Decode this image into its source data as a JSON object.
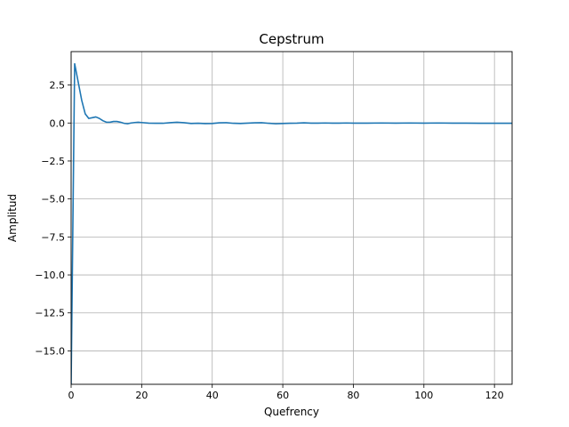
{
  "chart_data": {
    "type": "line",
    "title": "Cepstrum",
    "xlabel": "Quefrency",
    "ylabel": "Amplitud",
    "xlim": [
      0,
      125
    ],
    "ylim": [
      -17.2,
      4.7
    ],
    "xticks": [
      0,
      20,
      40,
      60,
      80,
      100,
      120
    ],
    "yticks": [
      2.5,
      0.0,
      -2.5,
      -5.0,
      -7.5,
      -10.0,
      -12.5,
      -15.0
    ],
    "ytick_labels": [
      "2.5",
      "0.0",
      "−2.5",
      "−5.0",
      "−7.5",
      "−10.0",
      "−12.5",
      "−15.0"
    ],
    "grid": true,
    "series": [
      {
        "color": "#1f77b4",
        "x": [
          0,
          1,
          2,
          3,
          4,
          5,
          6,
          7,
          8,
          9,
          10,
          11,
          12,
          13,
          14,
          15,
          16,
          17,
          18,
          19,
          20,
          22,
          24,
          26,
          28,
          30,
          32,
          34,
          36,
          38,
          40,
          42,
          44,
          46,
          48,
          50,
          52,
          54,
          56,
          58,
          60,
          62,
          64,
          66,
          68,
          70,
          72,
          74,
          76,
          78,
          80,
          84,
          88,
          92,
          96,
          100,
          104,
          108,
          112,
          116,
          120,
          125
        ],
        "y": [
          -17.2,
          3.9,
          2.7,
          1.5,
          0.6,
          0.3,
          0.35,
          0.4,
          0.3,
          0.15,
          0.05,
          0.05,
          0.1,
          0.1,
          0.05,
          -0.02,
          -0.05,
          0.0,
          0.03,
          0.05,
          0.03,
          -0.01,
          -0.02,
          -0.02,
          0.02,
          0.05,
          0.02,
          -0.03,
          -0.02,
          -0.04,
          -0.03,
          0.01,
          0.02,
          -0.02,
          -0.03,
          -0.01,
          0.01,
          0.02,
          -0.02,
          -0.05,
          -0.03,
          -0.02,
          -0.01,
          0.01,
          -0.01,
          -0.01,
          0.0,
          -0.01,
          -0.01,
          0.0,
          -0.01,
          -0.01,
          0.0,
          -0.01,
          0.0,
          -0.01,
          0.0,
          -0.01,
          -0.01,
          -0.02,
          -0.02,
          -0.02
        ]
      }
    ]
  }
}
